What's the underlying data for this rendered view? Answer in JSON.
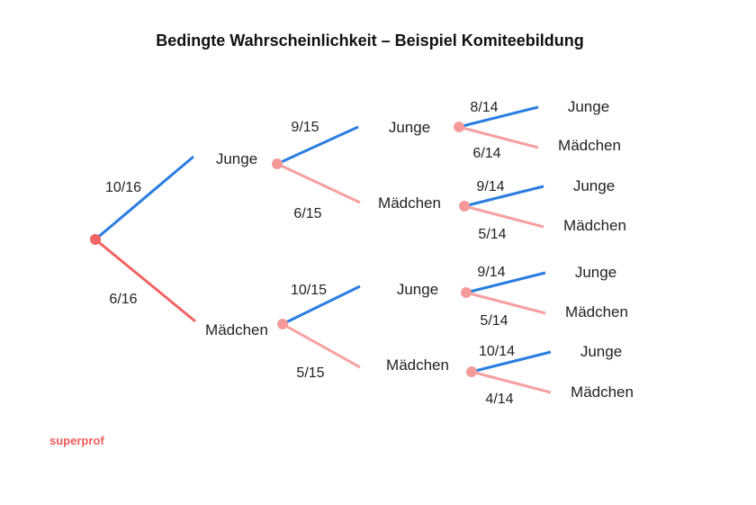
{
  "title": "Bedingte Wahrscheinlichkeit – Beispiel Komiteebildung",
  "brand": "superprof",
  "colors": {
    "junge": "#2a7de1",
    "maedchen": "#f7a0a0",
    "maedchen_root": "#f26363",
    "root_node": "#f26363",
    "node": "#f59a9a"
  },
  "tree": {
    "level1": {
      "junge": {
        "prob": "10/16",
        "label": "Junge"
      },
      "maedchen": {
        "prob": "6/16",
        "label": "Mädchen"
      }
    },
    "level2": {
      "j": {
        "junge": {
          "prob": "9/15",
          "label": "Junge"
        },
        "maedchen": {
          "prob": "6/15",
          "label": "Mädchen"
        }
      },
      "m": {
        "junge": {
          "prob": "10/15",
          "label": "Junge"
        },
        "maedchen": {
          "prob": "5/15",
          "label": "Mädchen"
        }
      }
    },
    "level3": {
      "jj": {
        "junge": {
          "prob": "8/14",
          "label": "Junge"
        },
        "maedchen": {
          "prob": "6/14",
          "label": "Mädchen"
        }
      },
      "jm": {
        "junge": {
          "prob": "9/14",
          "label": "Junge"
        },
        "maedchen": {
          "prob": "5/14",
          "label": "Mädchen"
        }
      },
      "mj": {
        "junge": {
          "prob": "9/14",
          "label": "Junge"
        },
        "maedchen": {
          "prob": "5/14",
          "label": "Mädchen"
        }
      },
      "mm": {
        "junge": {
          "prob": "10/14",
          "label": "Junge"
        },
        "maedchen": {
          "prob": "4/14",
          "label": "Mädchen"
        }
      }
    }
  }
}
